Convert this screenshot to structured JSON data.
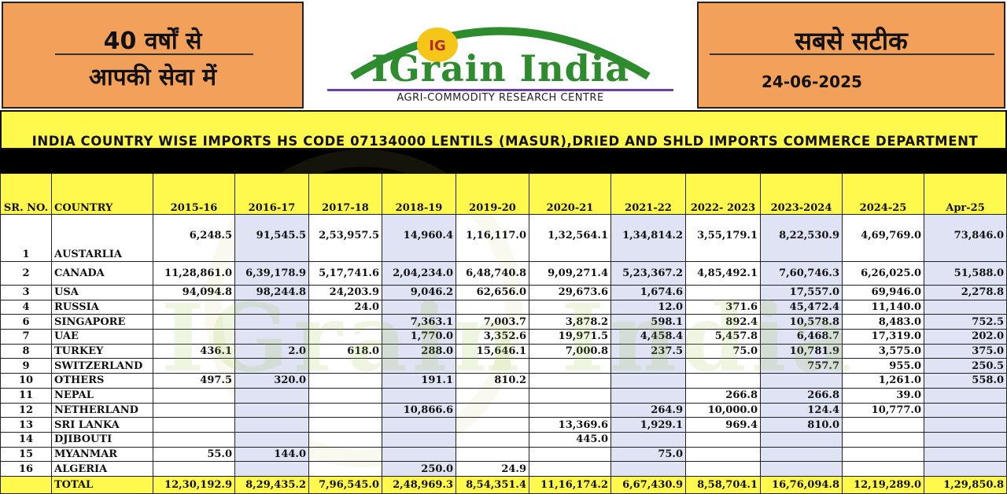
{
  "header": {
    "tagline_line1": "40 वर्षों से",
    "tagline_line2": "आपकी सेवा में",
    "right_title": "सबसे सटीक",
    "date": "24-06-2025",
    "logo_text": "IGrain India",
    "logo_icon_text": "IG",
    "logo_sub": "AGRI-COMMODITY RESEARCH CENTRE"
  },
  "report_title": "INDIA COUNTRY WISE IMPORTS HS CODE 07134000 LENTILS (MASUR),DRIED AND SHLD IMPORTS COMMERCE DEPARTMENT",
  "watermark": "IGrain India",
  "table": {
    "headers": [
      "SR. NO.",
      "COUNTRY",
      "2015-16",
      "2016-17",
      "2017-18",
      "2018-19",
      "2019-20",
      "2020-21",
      "2021-22",
      "2022- 2023",
      "2023-2024",
      "2024-25",
      "Apr-25"
    ],
    "rows": [
      [
        "1",
        "AUSTARLIA",
        "6,248.5",
        "91,545.5",
        "2,53,957.5",
        "14,960.4",
        "1,16,117.0",
        "1,32,564.1",
        "1,34,814.2",
        "3,55,179.1",
        "8,22,530.9",
        "4,69,769.0",
        "73,846.0"
      ],
      [
        "2",
        "CANADA",
        "11,28,861.0",
        "6,39,178.9",
        "5,17,741.6",
        "2,04,234.0",
        "6,48,740.8",
        "9,09,271.4",
        "5,23,367.2",
        "4,85,492.1",
        "7,60,746.3",
        "6,26,025.0",
        "51,588.0"
      ],
      [
        "3",
        "USA",
        "94,094.8",
        "98,244.8",
        "24,203.9",
        "9,046.2",
        "62,656.0",
        "29,673.6",
        "1,674.6",
        "",
        "17,557.0",
        "69,946.0",
        "2,278.8"
      ],
      [
        "4",
        "RUSSIA",
        "",
        "",
        "24.0",
        "",
        "",
        "",
        "12.0",
        "371.6",
        "45,472.4",
        "11,140.0",
        ""
      ],
      [
        "6",
        "SINGAPORE",
        "",
        "",
        "",
        "7,363.1",
        "7,003.7",
        "3,878.2",
        "598.1",
        "892.4",
        "10,578.8",
        "8,483.0",
        "752.5"
      ],
      [
        "7",
        "UAE",
        "",
        "",
        "",
        "1,770.0",
        "3,352.6",
        "19,971.5",
        "4,458.4",
        "5,457.8",
        "6,468.7",
        "17,319.0",
        "202.0"
      ],
      [
        "8",
        "TURKEY",
        "436.1",
        "2.0",
        "618.0",
        "288.0",
        "15,646.1",
        "7,000.8",
        "237.5",
        "75.0",
        "10,781.9",
        "3,575.0",
        "375.0"
      ],
      [
        "9",
        "SWITZERLAND",
        "",
        "",
        "",
        "",
        "",
        "",
        "",
        "",
        "757.7",
        "955.0",
        "250.5"
      ],
      [
        "10",
        "OTHERS",
        "497.5",
        "320.0",
        "",
        "191.1",
        "810.2",
        "",
        "",
        "",
        "",
        "1,261.0",
        "558.0"
      ],
      [
        "11",
        "NEPAL",
        "",
        "",
        "",
        "",
        "",
        "",
        "",
        "266.8",
        "266.8",
        "39.0",
        ""
      ],
      [
        "12",
        "NETHERLAND",
        "",
        "",
        "",
        "10,866.6",
        "",
        "",
        "264.9",
        "10,000.0",
        "124.4",
        "10,777.0",
        ""
      ],
      [
        "13",
        "SRI LANKA",
        "",
        "",
        "",
        "",
        "",
        "13,369.6",
        "1,929.1",
        "969.4",
        "810.0",
        "",
        ""
      ],
      [
        "14",
        "DJIBOUTI",
        "",
        "",
        "",
        "",
        "",
        "445.0",
        "",
        "",
        "",
        "",
        ""
      ],
      [
        "15",
        "MYANMAR",
        "55.0",
        "144.0",
        "",
        "",
        "",
        "",
        "75.0",
        "",
        "",
        "",
        ""
      ],
      [
        "16",
        "ALGERIA",
        "",
        "",
        "",
        "250.0",
        "24.9",
        "",
        "",
        "",
        "",
        "",
        ""
      ]
    ],
    "total": [
      "",
      "TOTAL",
      "12,30,192.9",
      "8,29,435.2",
      "7,96,545.0",
      "2,48,969.3",
      "8,54,351.4",
      "11,16,174.2",
      "6,67,430.9",
      "8,58,704.1",
      "16,76,094.8",
      "12,19,289.0",
      "1,29,850.8"
    ]
  },
  "colors": {
    "header_orange": "#f2a05a",
    "title_yellow": "#fff94d",
    "logo_green": "#2e8b2e",
    "alt_column_blue": "#dfe3f3"
  }
}
